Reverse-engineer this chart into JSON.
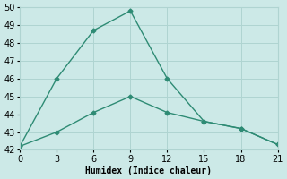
{
  "line1_x": [
    0,
    3,
    6,
    9,
    12,
    15,
    18,
    21
  ],
  "line1_y": [
    42.2,
    46.0,
    48.7,
    49.8,
    46.0,
    43.6,
    43.2,
    42.3
  ],
  "line2_x": [
    0,
    3,
    6,
    9,
    12,
    15,
    18,
    21
  ],
  "line2_y": [
    42.2,
    43.0,
    44.1,
    45.0,
    44.1,
    43.6,
    43.2,
    42.3
  ],
  "line_color": "#2e8b74",
  "bg_color": "#cce9e7",
  "grid_color": "#afd4d1",
  "xlabel": "Humidex (Indice chaleur)",
  "xlim": [
    0,
    21
  ],
  "ylim": [
    42,
    50
  ],
  "xticks": [
    0,
    3,
    6,
    9,
    12,
    15,
    18,
    21
  ],
  "yticks": [
    42,
    43,
    44,
    45,
    46,
    47,
    48,
    49,
    50
  ],
  "xlabel_fontsize": 7,
  "tick_fontsize": 7,
  "linewidth": 1.0,
  "markersize": 2.5
}
